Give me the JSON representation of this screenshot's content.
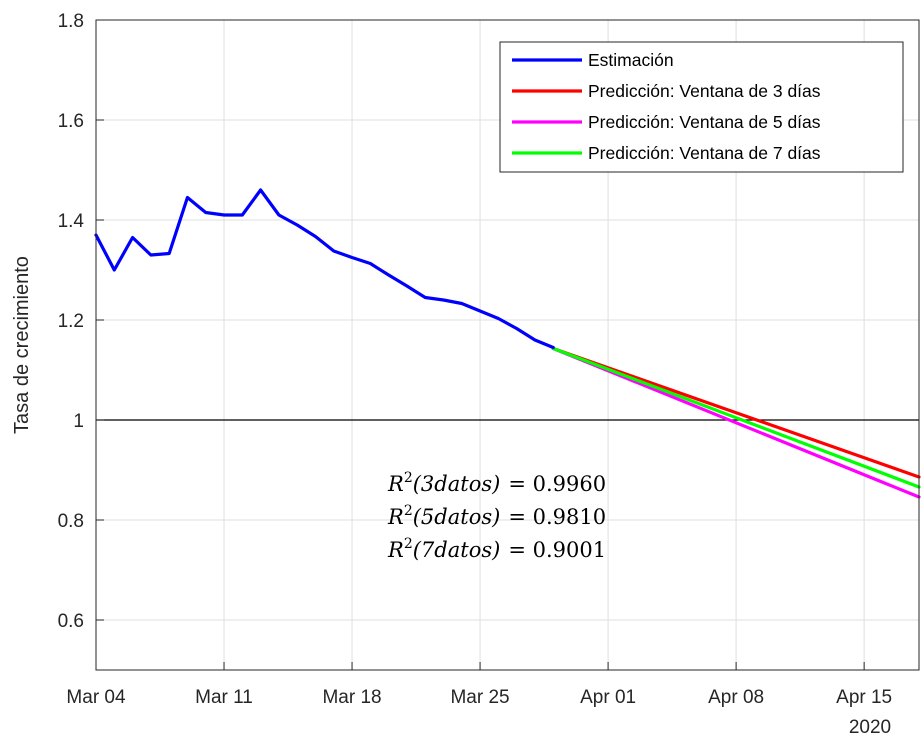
{
  "chart_data": {
    "type": "line",
    "title": "",
    "xlabel": "",
    "ylabel": "Tasa de crecimiento",
    "ylim": [
      0.5,
      1.8
    ],
    "xlim": [
      "2020-03-04",
      "2020-04-18"
    ],
    "y_ticks": [
      "0.6",
      "0.8",
      "1",
      "1.2",
      "1.4",
      "1.6",
      "1.8"
    ],
    "x_ticks": [
      {
        "date": "2020-03-04",
        "label": "Mar 04"
      },
      {
        "date": "2020-03-11",
        "label": "Mar 11"
      },
      {
        "date": "2020-03-18",
        "label": "Mar 18"
      },
      {
        "date": "2020-03-25",
        "label": "Mar 25"
      },
      {
        "date": "2020-04-01",
        "label": "Apr 01"
      },
      {
        "date": "2020-04-08",
        "label": "Apr 08"
      },
      {
        "date": "2020-04-15",
        "label": "Apr 15"
      }
    ],
    "x_secondary_label": "2020",
    "grid": true,
    "reference_line": {
      "y": 1,
      "color": "#000000"
    },
    "legend": {
      "position": "top-right"
    },
    "series": [
      {
        "name": "Estimación",
        "color": "#0000ff",
        "x": [
          "2020-03-04",
          "2020-03-05",
          "2020-03-06",
          "2020-03-07",
          "2020-03-08",
          "2020-03-09",
          "2020-03-10",
          "2020-03-11",
          "2020-03-12",
          "2020-03-13",
          "2020-03-14",
          "2020-03-15",
          "2020-03-16",
          "2020-03-17",
          "2020-03-18",
          "2020-03-19",
          "2020-03-20",
          "2020-03-21",
          "2020-03-22",
          "2020-03-23",
          "2020-03-24",
          "2020-03-25",
          "2020-03-26",
          "2020-03-27",
          "2020-03-28",
          "2020-03-29"
        ],
        "y": [
          1.37,
          1.3,
          1.365,
          1.33,
          1.333,
          1.445,
          1.415,
          1.41,
          1.41,
          1.46,
          1.41,
          1.39,
          1.367,
          1.338,
          1.325,
          1.313,
          1.29,
          1.268,
          1.245,
          1.24,
          1.233,
          1.218,
          1.203,
          1.183,
          1.16,
          1.145
        ]
      },
      {
        "name": "Predicción: Ventana de 3 días",
        "color": "#ff0000",
        "x": [
          "2020-03-29",
          "2020-04-18"
        ],
        "y": [
          1.143,
          0.886
        ]
      },
      {
        "name": "Predicción: Ventana de 5 días",
        "color": "#ff00ff",
        "x": [
          "2020-03-29",
          "2020-04-18"
        ],
        "y": [
          1.143,
          0.846
        ]
      },
      {
        "name": "Predicción: Ventana de 7 días",
        "color": "#00ff00",
        "x": [
          "2020-03-29",
          "2020-04-18"
        ],
        "y": [
          1.143,
          0.866
        ]
      }
    ],
    "annotations": [
      {
        "base": "R",
        "exp": "2",
        "arg": "(3datos)",
        "value": "= 0.9960"
      },
      {
        "base": "R",
        "exp": "2",
        "arg": "(5datos)",
        "value": "= 0.9810"
      },
      {
        "base": "R",
        "exp": "2",
        "arg": "(7datos)",
        "value": "= 0.9001"
      }
    ]
  }
}
